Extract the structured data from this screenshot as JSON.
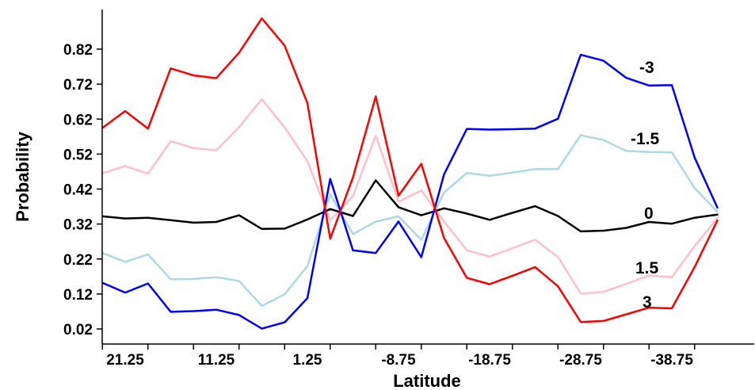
{
  "chart_data": {
    "type": "line",
    "title": "",
    "xlabel": "Latitude",
    "ylabel": "Probability",
    "x_reversed": true,
    "xlim": [
      25.25,
      -42.75
    ],
    "ylim": [
      0.0,
      0.93
    ],
    "xticks": [
      21.25,
      11.25,
      1.25,
      -8.75,
      -18.75,
      -28.75,
      -38.75
    ],
    "xtick_labels": [
      "21.25",
      "11.25",
      "1.25",
      "-8.75",
      "-18.75",
      "-28.75",
      "-38.75"
    ],
    "yticks": [
      0.02,
      0.12,
      0.22,
      0.32,
      0.42,
      0.52,
      0.62,
      0.72,
      0.82
    ],
    "ytick_labels": [
      "0.02",
      "0.12",
      "0.22",
      "0.32",
      "0.42",
      "0.52",
      "0.62",
      "0.72",
      "0.82"
    ],
    "grid": false,
    "legend": "inline labels at right",
    "x": [
      23.75,
      21.25,
      18.75,
      16.25,
      13.75,
      11.25,
      8.75,
      6.25,
      3.75,
      1.25,
      -1.25,
      -3.75,
      -6.25,
      -8.75,
      -11.25,
      -13.75,
      -16.25,
      -18.75,
      -21.25,
      -23.75,
      -26.25,
      -28.75,
      -31.25,
      -33.75,
      -36.25,
      -38.75,
      -41.25,
      -43.75
    ],
    "series": [
      {
        "name": "-3",
        "color": "#0000ff",
        "values": [
          0.152,
          0.124,
          0.15,
          0.069,
          0.071,
          0.075,
          0.06,
          0.021,
          0.039,
          0.108,
          0.449,
          0.245,
          0.237,
          0.327,
          0.225,
          0.462,
          0.592,
          0.59,
          0.591,
          0.593,
          0.621,
          0.804,
          0.787,
          0.738,
          0.716,
          0.717,
          0.51,
          0.367
        ]
      },
      {
        "name": "-1.5",
        "color": "#add8e6",
        "values": [
          0.237,
          0.212,
          0.233,
          0.162,
          0.163,
          0.168,
          0.157,
          0.086,
          0.119,
          0.2,
          0.405,
          0.291,
          0.327,
          0.342,
          0.275,
          0.41,
          0.466,
          0.458,
          0.467,
          0.477,
          0.477,
          0.574,
          0.56,
          0.529,
          0.526,
          0.525,
          0.423,
          0.355
        ]
      },
      {
        "name": "0",
        "color": "#000000",
        "values": [
          0.342,
          0.336,
          0.338,
          0.331,
          0.324,
          0.326,
          0.345,
          0.306,
          0.307,
          0.333,
          0.363,
          0.343,
          0.445,
          0.368,
          0.345,
          0.365,
          0.35,
          0.332,
          0.352,
          0.371,
          0.343,
          0.299,
          0.301,
          0.309,
          0.326,
          0.321,
          0.338,
          0.347
        ]
      },
      {
        "name": "1.5",
        "color": "#ffc0cb",
        "values": [
          0.465,
          0.486,
          0.464,
          0.557,
          0.537,
          0.531,
          0.597,
          0.677,
          0.596,
          0.5,
          0.33,
          0.4,
          0.573,
          0.384,
          0.416,
          0.327,
          0.245,
          0.227,
          0.251,
          0.275,
          0.226,
          0.121,
          0.126,
          0.149,
          0.173,
          0.168,
          0.257,
          0.337
        ]
      },
      {
        "name": "3",
        "color": "#ff0000",
        "values": [
          0.595,
          0.643,
          0.593,
          0.765,
          0.745,
          0.737,
          0.81,
          0.908,
          0.83,
          0.666,
          0.278,
          0.453,
          0.685,
          0.401,
          0.492,
          0.28,
          0.166,
          0.148,
          0.172,
          0.197,
          0.142,
          0.04,
          0.043,
          0.062,
          0.081,
          0.079,
          0.197,
          0.33
        ]
      }
    ],
    "series_labels": [
      "-3",
      "-1.5",
      "0",
      "1.5",
      "3"
    ]
  }
}
